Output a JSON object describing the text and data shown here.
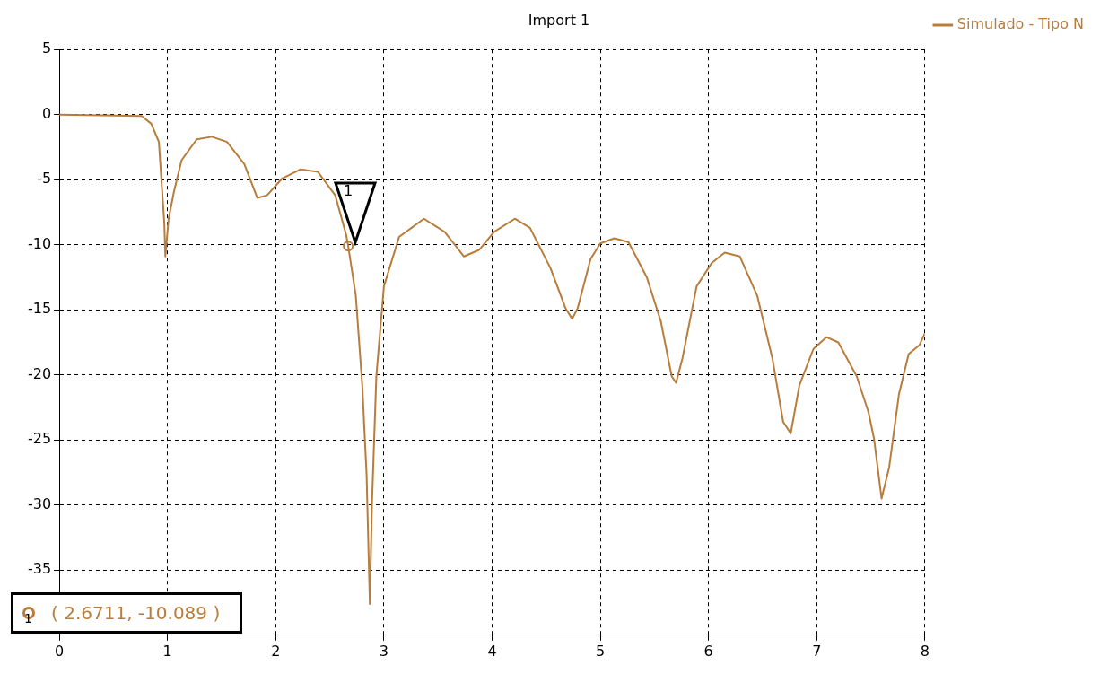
{
  "chart_data": {
    "type": "line",
    "title": "Import 1",
    "xlim": [
      0,
      8
    ],
    "xticks": [
      0,
      1,
      2,
      3,
      4,
      5,
      6,
      7,
      8
    ],
    "ylim": [
      -40,
      5
    ],
    "yticks": [
      5,
      0,
      -5,
      -10,
      -15,
      -20,
      -25,
      -30,
      -35
    ],
    "grid": true,
    "legend": "top right",
    "marker": "none",
    "line_style": "solid",
    "series": [
      {
        "name": "Simulado - Tipo N",
        "color": "#b87d3b",
        "x": [
          0,
          0.76,
          0.85,
          0.92,
          0.97,
          0.98,
          1.01,
          1.06,
          1.13,
          1.27,
          1.41,
          1.55,
          1.71,
          1.83,
          1.92,
          2.06,
          2.23,
          2.39,
          2.55,
          2.65,
          2.67,
          2.74,
          2.8,
          2.84,
          2.87,
          2.89,
          2.93,
          3.0,
          3.14,
          3.37,
          3.56,
          3.74,
          3.88,
          4.02,
          4.21,
          4.35,
          4.54,
          4.68,
          4.74,
          4.79,
          4.91,
          5.0,
          5.13,
          5.26,
          5.43,
          5.56,
          5.66,
          5.7,
          5.76,
          5.89,
          6.03,
          6.15,
          6.29,
          6.45,
          6.59,
          6.69,
          6.76,
          6.84,
          6.97,
          7.09,
          7.2,
          7.37,
          7.48,
          7.53,
          7.6,
          7.67,
          7.76,
          7.85,
          7.95,
          8.0
        ],
        "values": [
          0,
          -0.1,
          -0.7,
          -2.1,
          -8.3,
          -10.9,
          -8,
          -5.9,
          -3.5,
          -1.9,
          -1.7,
          -2.1,
          -3.8,
          -6.4,
          -6.2,
          -4.9,
          -4.2,
          -4.4,
          -6.2,
          -9.2,
          -10.1,
          -13.9,
          -20.8,
          -27.7,
          -37.6,
          -29.8,
          -20.1,
          -13.2,
          -9.4,
          -8,
          -9,
          -10.9,
          -10.4,
          -9,
          -8,
          -8.7,
          -11.8,
          -14.9,
          -15.7,
          -14.9,
          -11.1,
          -9.9,
          -9.5,
          -9.8,
          -12.5,
          -15.9,
          -20.1,
          -20.6,
          -18.7,
          -13.2,
          -11.4,
          -10.6,
          -10.9,
          -13.9,
          -18.7,
          -23.6,
          -24.5,
          -20.8,
          -18,
          -17.1,
          -17.5,
          -20.1,
          -22.9,
          -24.9,
          -29.5,
          -27.1,
          -21.5,
          -18.4,
          -17.7,
          -16.8
        ]
      },
      {
        "type": "scatter",
        "marker": "circle",
        "color": "#b87d3b",
        "x": [
          2.67
        ],
        "values": [
          -10.1
        ]
      }
    ],
    "annotations": [
      "1",
      "( 2.6711, -10.089 )"
    ]
  }
}
